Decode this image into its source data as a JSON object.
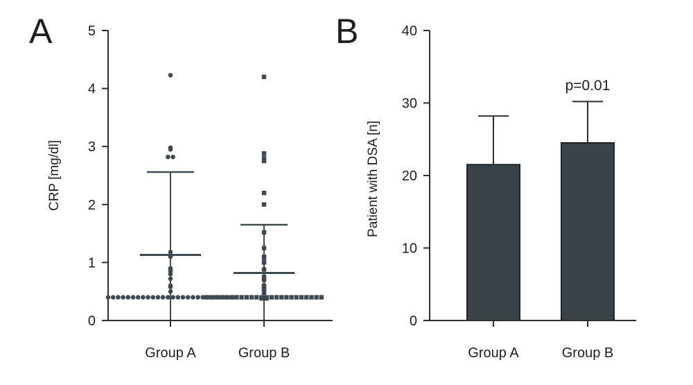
{
  "colors": {
    "axis": "#2e2e2e",
    "marker": "#3f4a50",
    "bar_fill": "#3a4448",
    "bar_stroke": "#1c2225"
  },
  "chart_data": [
    {
      "type": "scatter",
      "panel_label": "A",
      "title": "",
      "xlabel": "",
      "ylabel": "CRP [mg/dl]",
      "ylim": [
        0,
        5
      ],
      "y_ticks": [
        "0",
        "1",
        "2",
        "3",
        "4",
        "5"
      ],
      "categories": [
        "Group A",
        "Group B"
      ],
      "grid": false,
      "series": [
        {
          "category": "Group A",
          "marker": "circle",
          "mean": 1.13,
          "sd_upper": 2.56,
          "sd_lower": 0,
          "values": [
            4.23,
            2.98,
            2.95,
            2.82,
            2.82,
            1.18,
            1.1,
            0.9,
            0.88,
            0.85,
            0.8,
            0.72,
            0.6,
            0.58,
            0.5,
            0.4,
            0.4,
            0.4,
            0.4,
            0.4,
            0.4,
            0.4,
            0.4,
            0.4,
            0.4,
            0.4,
            0.4,
            0.4,
            0.4,
            0.4,
            0.4,
            0.4,
            0.4,
            0.4,
            0.4,
            0.4,
            0.4,
            0.4,
            0.4,
            0.4,
            0.4
          ]
        },
        {
          "category": "Group B",
          "marker": "square",
          "mean": 0.82,
          "sd_upper": 1.65,
          "sd_lower": 0,
          "values": [
            4.2,
            2.88,
            2.8,
            2.75,
            2.2,
            2.0,
            1.52,
            1.25,
            1.1,
            1.08,
            1.0,
            0.88,
            0.75,
            0.7,
            0.6,
            0.58,
            0.52,
            0.48,
            0.4,
            0.4,
            0.4,
            0.4,
            0.4,
            0.4,
            0.4,
            0.4,
            0.4,
            0.4,
            0.4,
            0.4,
            0.4,
            0.4,
            0.4,
            0.4,
            0.4,
            0.4,
            0.4,
            0.4,
            0.4,
            0.4,
            0.4,
            0.4,
            0.38,
            0.38
          ]
        }
      ]
    },
    {
      "type": "bar",
      "panel_label": "B",
      "title": "",
      "xlabel": "",
      "ylabel": "Patient with DSA [n]",
      "ylim": [
        0,
        40
      ],
      "y_ticks": [
        "0",
        "10",
        "20",
        "30",
        "40"
      ],
      "categories": [
        "Group A",
        "Group B"
      ],
      "grid": false,
      "values": [
        21.5,
        24.5
      ],
      "error_upper": [
        28.2,
        30.2
      ],
      "annotations": [
        {
          "category": "Group B",
          "text": "p=0.01"
        }
      ]
    }
  ]
}
